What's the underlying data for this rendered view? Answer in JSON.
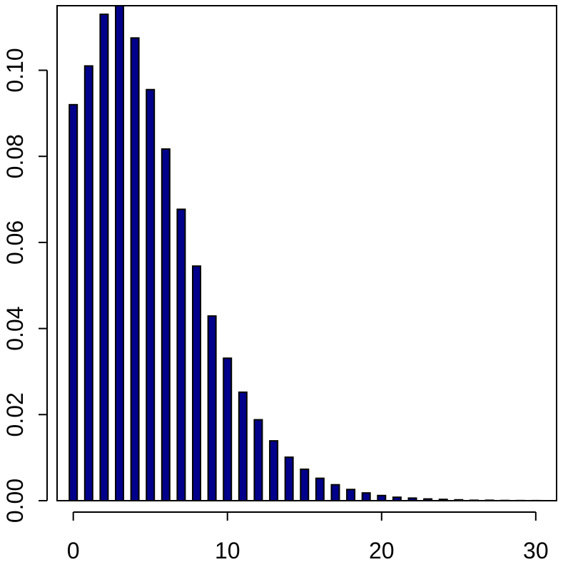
{
  "chart_data": {
    "type": "bar",
    "title": "",
    "xlabel": "",
    "ylabel": "",
    "x": [
      0,
      1,
      2,
      3,
      4,
      5,
      6,
      7,
      8,
      9,
      10,
      11,
      12,
      13,
      14,
      15,
      16,
      17,
      18,
      19,
      20,
      21,
      22,
      23,
      24,
      25,
      26,
      27,
      28,
      29,
      30
    ],
    "values": [
      0.092,
      0.101,
      0.113,
      0.115,
      0.1075,
      0.0955,
      0.0817,
      0.0677,
      0.0545,
      0.0429,
      0.0331,
      0.0252,
      0.0188,
      0.0139,
      0.0101,
      0.0073,
      0.0052,
      0.0037,
      0.0026,
      0.0018,
      0.0012,
      0.0008,
      0.0006,
      0.0004,
      0.0003,
      0.0002,
      0.0001,
      0.0001,
      5e-05,
      3e-05,
      2e-05
    ],
    "xlim": [
      -1.05,
      31.35
    ],
    "ylim": [
      0,
      0.115
    ],
    "x_ticks": [
      "0",
      "10",
      "20",
      "30"
    ],
    "y_ticks": [
      "0.00",
      "0.02",
      "0.04",
      "0.06",
      "0.08",
      "0.10"
    ],
    "bar_color": "#00008b",
    "grid": false,
    "legend": "none"
  }
}
